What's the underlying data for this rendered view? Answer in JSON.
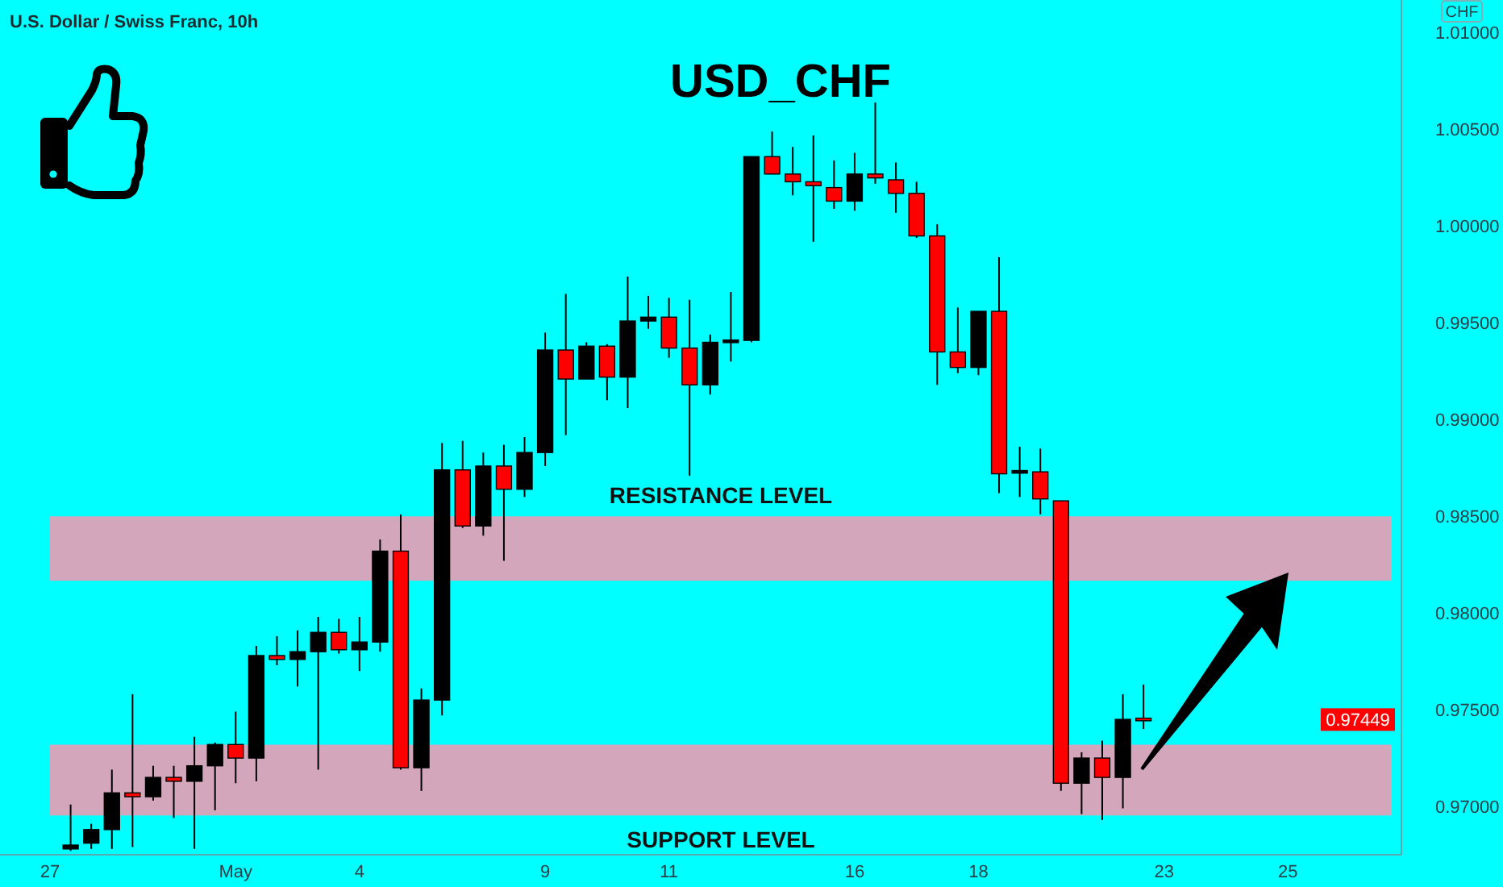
{
  "chart_data": {
    "type": "candlestick",
    "title": "USD_CHF",
    "subtitle": "U.S. Dollar / Swiss Franc, 10h",
    "ylabel": "CHF",
    "categories": [
      "27",
      null,
      null,
      null,
      null,
      null,
      null,
      null,
      null,
      "May",
      null,
      null,
      null,
      null,
      null,
      "4",
      null,
      null,
      null,
      null,
      null,
      null,
      null,
      null,
      "9",
      null,
      null,
      null,
      null,
      null,
      "11",
      null,
      null,
      null,
      null,
      null,
      null,
      null,
      null,
      "16",
      null,
      null,
      null,
      null,
      null,
      "18",
      null,
      null,
      null,
      null,
      null,
      null,
      null,
      null,
      "23",
      null,
      null,
      null,
      null,
      null,
      "25",
      null,
      null,
      null,
      null,
      null
    ],
    "ohlc": [
      null,
      [
        0.9678,
        0.9701,
        0.9677,
        0.968
      ],
      [
        0.9681,
        0.9691,
        0.9678,
        0.9688
      ],
      [
        0.9688,
        0.9719,
        0.9678,
        0.9707
      ],
      [
        0.9707,
        0.9758,
        0.9679,
        0.9705
      ],
      [
        0.9705,
        0.9721,
        0.9703,
        0.9715
      ],
      [
        0.9715,
        0.9721,
        0.9694,
        0.9713
      ],
      [
        0.9713,
        0.9736,
        0.9678,
        0.9721
      ],
      [
        0.9721,
        0.9733,
        0.9698,
        0.9732
      ],
      [
        0.9732,
        0.9749,
        0.9712,
        0.9725
      ],
      [
        0.9725,
        0.9783,
        0.9713,
        0.9778
      ],
      [
        0.9778,
        0.9788,
        0.9773,
        0.9776
      ],
      [
        0.9776,
        0.9791,
        0.9762,
        0.978
      ],
      [
        0.978,
        0.9798,
        0.9719,
        0.979
      ],
      [
        0.979,
        0.9797,
        0.9779,
        0.9781
      ],
      [
        0.9781,
        0.9798,
        0.977,
        0.9785
      ],
      [
        0.9785,
        0.9838,
        0.978,
        0.9832
      ],
      [
        0.9832,
        0.9851,
        0.9719,
        0.972
      ],
      [
        0.972,
        0.9761,
        0.9708,
        0.9755
      ],
      [
        0.9755,
        0.9888,
        0.9747,
        0.9874
      ],
      [
        0.9874,
        0.9889,
        0.9844,
        0.9845
      ],
      [
        0.9845,
        0.9883,
        0.984,
        0.9876
      ],
      [
        0.9876,
        0.9887,
        0.9827,
        0.9864
      ],
      [
        0.9864,
        0.9891,
        0.986,
        0.9883
      ],
      [
        0.9883,
        0.9945,
        0.9876,
        0.9936
      ],
      [
        0.9936,
        0.9965,
        0.9892,
        0.9921
      ],
      [
        0.9921,
        0.994,
        0.9921,
        0.9938
      ],
      [
        0.9938,
        0.9939,
        0.991,
        0.9922
      ],
      [
        0.9922,
        0.9974,
        0.9906,
        0.9951
      ],
      [
        0.9951,
        0.9964,
        0.9947,
        0.9953
      ],
      [
        0.9953,
        0.9963,
        0.9932,
        0.9937
      ],
      [
        0.9937,
        0.9962,
        0.9871,
        0.9918
      ],
      [
        0.9918,
        0.9944,
        0.9913,
        0.994
      ],
      [
        0.994,
        0.9966,
        0.993,
        0.9941
      ],
      [
        0.9941,
        1.0036,
        0.994,
        1.0036
      ],
      [
        1.0036,
        1.0049,
        1.0027,
        1.0027
      ],
      [
        1.0027,
        1.0041,
        1.0016,
        1.0023
      ],
      [
        1.0023,
        1.0047,
        0.9992,
        1.0021
      ],
      [
        1.002,
        1.0034,
        1.0009,
        1.0013
      ],
      [
        1.0013,
        1.0038,
        1.0008,
        1.0027
      ],
      [
        1.0027,
        1.0064,
        1.0022,
        1.0025
      ],
      [
        1.0024,
        1.0033,
        1.0007,
        1.0017
      ],
      [
        1.0017,
        1.0023,
        0.9994,
        0.9995
      ],
      [
        0.9995,
        1.0001,
        0.9918,
        0.9935
      ],
      [
        0.9935,
        0.9958,
        0.9924,
        0.9927
      ],
      [
        0.9927,
        0.9956,
        0.9923,
        0.9956
      ],
      [
        0.9956,
        0.9984,
        0.9862,
        0.9872
      ],
      [
        0.9873,
        0.9886,
        0.986,
        0.9873
      ],
      [
        0.9873,
        0.9885,
        0.9851,
        0.9859
      ],
      [
        0.9858,
        0.9858,
        0.9708,
        0.9712
      ],
      [
        0.9712,
        0.9728,
        0.9696,
        0.9725
      ],
      [
        0.9725,
        0.9734,
        0.9693,
        0.9715
      ],
      [
        0.9715,
        0.9758,
        0.9699,
        0.9745
      ],
      [
        0.9745,
        0.9763,
        0.974,
        0.97449
      ],
      null,
      null,
      null,
      null,
      null,
      null,
      null,
      null,
      null,
      null,
      null,
      null
    ],
    "colors": [
      null,
      "#000000",
      "#000000",
      "#000000",
      "#ff0000",
      "#000000",
      "#ff0000",
      "#000000",
      "#000000",
      "#ff0000",
      "#000000",
      "#ff0000",
      "#000000",
      "#000000",
      "#ff0000",
      "#000000",
      "#000000",
      "#ff0000",
      "#000000",
      "#000000",
      "#ff0000",
      "#000000",
      "#ff0000",
      "#000000",
      "#000000",
      "#ff0000",
      "#000000",
      "#ff0000",
      "#000000",
      "#000000",
      "#ff0000",
      "#ff0000",
      "#000000",
      "#000000",
      "#000000",
      "#ff0000",
      "#ff0000",
      "#ff0000",
      "#ff0000",
      "#000000",
      "#ff0000",
      "#ff0000",
      "#ff0000",
      "#ff0000",
      "#ff0000",
      "#000000",
      "#ff0000",
      "#000000",
      "#ff0000",
      "#ff0000",
      "#000000",
      "#ff0000",
      "#000000",
      "#ff0000",
      null,
      null,
      null,
      null,
      null,
      null,
      null,
      null,
      null,
      null,
      null,
      null
    ],
    "ylim": [
      0.9675,
      1.0117
    ],
    "yticks": [
      {
        "value": 0.97,
        "label": "0.97000"
      },
      {
        "value": 0.975,
        "label": "0.97500"
      },
      {
        "value": 0.98,
        "label": "0.98000"
      },
      {
        "value": 0.985,
        "label": "0.98500"
      },
      {
        "value": 0.99,
        "label": "0.99000"
      },
      {
        "value": 0.995,
        "label": "0.99500"
      },
      {
        "value": 1.0,
        "label": "1.00000"
      },
      {
        "value": 1.005,
        "label": "1.00500"
      },
      {
        "value": 1.01,
        "label": "1.01000"
      }
    ],
    "bands": [
      {
        "axis": "y",
        "from": 0.98167,
        "to": 0.985,
        "label": "RESISTANCE LEVEL",
        "color": "#d4a6bc"
      },
      {
        "axis": "y",
        "from": 0.96953,
        "to": 0.97319,
        "label": "SUPPORT LEVEL",
        "color": "#d4a6bc"
      }
    ],
    "annotations": [
      "0.97449"
    ]
  }
}
